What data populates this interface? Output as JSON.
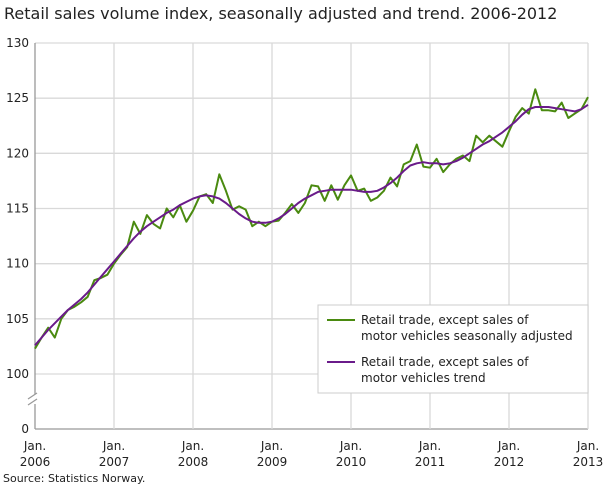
{
  "chart_data": {
    "type": "line",
    "title": "Retail sales volume index, seasonally adjusted and trend. 2006-2012",
    "source": "Source: Statistics Norway.",
    "xlabel": "",
    "ylabel": "",
    "x_start": "2006-01",
    "x_frequency": "monthly",
    "x_ticks": [
      [
        "Jan.",
        "2006"
      ],
      [
        "Jan.",
        "2007"
      ],
      [
        "Jan.",
        "2008"
      ],
      [
        "Jan.",
        "2009"
      ],
      [
        "Jan.",
        "2010"
      ],
      [
        "Jan.",
        "2011"
      ],
      [
        "Jan.",
        "2012"
      ],
      [
        "Jan.",
        "2013"
      ]
    ],
    "y_ticks": [
      "130",
      "125",
      "120",
      "115",
      "110",
      "105",
      "100",
      "0"
    ],
    "ylim": [
      100,
      130
    ],
    "y_axis_break": true,
    "grid": true,
    "legend_position": "bottom-right",
    "series": [
      {
        "name": "Retail trade, except sales of motor vehicles seasonally adjusted",
        "legend_lines": [
          "Retail trade, except sales of",
          "motor vehicles seasonally adjusted"
        ],
        "color": "#4a8a10",
        "values": [
          102.3,
          103.3,
          104.2,
          103.3,
          105.0,
          105.8,
          106.1,
          106.5,
          107.0,
          108.5,
          108.7,
          109.0,
          110.0,
          110.8,
          111.5,
          113.8,
          112.7,
          114.4,
          113.6,
          113.2,
          115.0,
          114.2,
          115.3,
          113.8,
          114.8,
          116.1,
          116.3,
          115.5,
          118.1,
          116.6,
          114.9,
          115.2,
          114.9,
          113.4,
          113.8,
          113.4,
          113.8,
          113.9,
          114.6,
          115.4,
          114.6,
          115.5,
          117.1,
          117.0,
          115.7,
          117.1,
          115.8,
          117.1,
          118.0,
          116.6,
          116.8,
          115.7,
          116.0,
          116.6,
          117.8,
          117.0,
          119.0,
          119.3,
          120.8,
          118.8,
          118.7,
          119.5,
          118.3,
          119.0,
          119.5,
          119.8,
          119.3,
          121.6,
          121.0,
          121.6,
          121.1,
          120.6,
          122.0,
          123.3,
          124.1,
          123.6,
          125.8,
          123.9,
          123.9,
          123.8,
          124.6,
          123.2,
          123.6,
          124.0,
          125.1
        ]
      },
      {
        "name": "Retail trade, except sales of motor vehicles trend",
        "legend_lines": [
          "Retail trade, except sales of",
          "motor vehicles trend"
        ],
        "color": "#6a1b8a",
        "values": [
          102.6,
          103.3,
          104.0,
          104.6,
          105.2,
          105.8,
          106.3,
          106.8,
          107.4,
          108.1,
          108.8,
          109.5,
          110.2,
          110.9,
          111.6,
          112.3,
          112.9,
          113.4,
          113.8,
          114.2,
          114.6,
          114.9,
          115.3,
          115.6,
          115.9,
          116.1,
          116.2,
          116.1,
          115.9,
          115.5,
          115.0,
          114.5,
          114.1,
          113.8,
          113.7,
          113.7,
          113.8,
          114.1,
          114.5,
          115.0,
          115.5,
          115.9,
          116.2,
          116.5,
          116.6,
          116.7,
          116.7,
          116.7,
          116.7,
          116.6,
          116.5,
          116.5,
          116.6,
          116.9,
          117.3,
          117.8,
          118.4,
          118.9,
          119.1,
          119.2,
          119.1,
          119.1,
          119.0,
          119.1,
          119.3,
          119.6,
          120.0,
          120.4,
          120.8,
          121.1,
          121.5,
          121.9,
          122.4,
          122.9,
          123.5,
          124.0,
          124.2,
          124.2,
          124.2,
          124.1,
          124.0,
          123.9,
          123.8,
          124.0,
          124.4
        ]
      }
    ]
  }
}
